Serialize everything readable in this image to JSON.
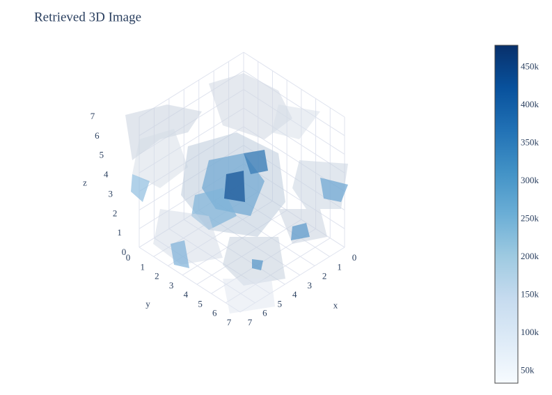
{
  "chart_data": {
    "type": "volume",
    "title": "Retrieved 3D Image",
    "xlabel": "x",
    "ylabel": "y",
    "zlabel": "z",
    "xlim": [
      0,
      7
    ],
    "ylim": [
      0,
      7
    ],
    "zlim": [
      0,
      7
    ],
    "xticks": [
      0,
      1,
      2,
      3,
      4,
      5,
      6,
      7
    ],
    "yticks": [
      0,
      1,
      2,
      3,
      4,
      5,
      6,
      7
    ],
    "zticks": [
      0,
      1,
      2,
      3,
      4,
      5,
      6,
      7
    ],
    "grid": true,
    "colorscale": [
      "#f7fbff",
      "#deebf7",
      "#c6dbef",
      "#9ecae1",
      "#6baed6",
      "#4292c6",
      "#2171b5",
      "#08519c",
      "#08306b"
    ],
    "colorbar": {
      "range": [
        34000,
        479000
      ],
      "ticks": [
        {
          "value": 50000,
          "label": "50k"
        },
        {
          "value": 100000,
          "label": "100k"
        },
        {
          "value": 150000,
          "label": "150k"
        },
        {
          "value": 200000,
          "label": "200k"
        },
        {
          "value": 250000,
          "label": "250k"
        },
        {
          "value": 300000,
          "label": "300k"
        },
        {
          "value": 350000,
          "label": "350k"
        },
        {
          "value": 400000,
          "label": "400k"
        },
        {
          "value": 450000,
          "label": "450k"
        }
      ]
    }
  }
}
